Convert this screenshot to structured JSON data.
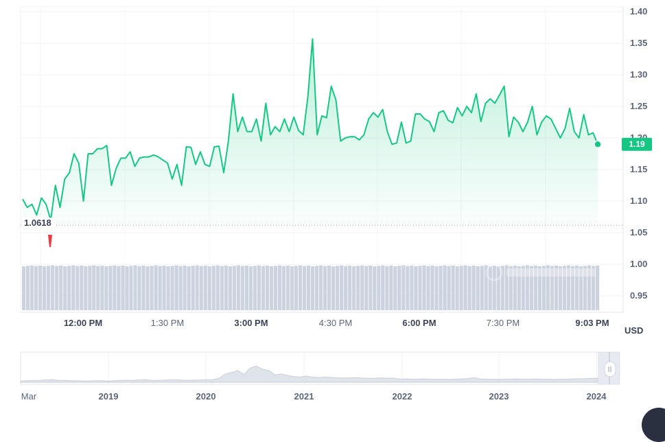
{
  "chart_data": {
    "type": "area",
    "currency": "USD",
    "ylim": [
      0.93,
      1.41
    ],
    "y_ticks": [
      "1.40",
      "1.35",
      "1.30",
      "1.25",
      "1.20",
      "1.15",
      "1.10",
      "1.05",
      "1.00",
      "0.95"
    ],
    "y_tick_values": [
      1.4,
      1.35,
      1.3,
      1.25,
      1.2,
      1.15,
      1.1,
      1.05,
      1.0,
      0.95
    ],
    "x_ticks": [
      {
        "label": "12:00 PM",
        "bold": true
      },
      {
        "label": "1:30 PM",
        "bold": false
      },
      {
        "label": "3:00 PM",
        "bold": true
      },
      {
        "label": "4:30 PM",
        "bold": false
      },
      {
        "label": "6:00 PM",
        "bold": true
      },
      {
        "label": "7:30 PM",
        "bold": false
      },
      {
        "label": "9:03 PM",
        "bold": true
      }
    ],
    "current_price": "1.19",
    "current_value": 1.19,
    "open_price": "1.0618",
    "open_value": 1.0618,
    "series_color": "#16c784",
    "down_color": "#ea3943",
    "values": [
      1.103,
      1.09,
      1.095,
      1.078,
      1.105,
      1.095,
      1.07,
      1.125,
      1.09,
      1.135,
      1.145,
      1.175,
      1.16,
      1.1,
      1.175,
      1.175,
      1.183,
      1.183,
      1.188,
      1.125,
      1.152,
      1.168,
      1.168,
      1.178,
      1.155,
      1.168,
      1.17,
      1.17,
      1.173,
      1.17,
      1.165,
      1.16,
      1.135,
      1.158,
      1.125,
      1.186,
      1.185,
      1.158,
      1.178,
      1.158,
      1.155,
      1.186,
      1.187,
      1.145,
      1.195,
      1.27,
      1.21,
      1.233,
      1.21,
      1.21,
      1.23,
      1.195,
      1.255,
      1.205,
      1.218,
      1.21,
      1.23,
      1.21,
      1.233,
      1.212,
      1.205,
      1.265,
      1.357,
      1.205,
      1.235,
      1.232,
      1.282,
      1.26,
      1.195,
      1.2,
      1.202,
      1.202,
      1.197,
      1.205,
      1.23,
      1.24,
      1.233,
      1.245,
      1.21,
      1.19,
      1.192,
      1.225,
      1.192,
      1.195,
      1.238,
      1.238,
      1.23,
      1.226,
      1.21,
      1.24,
      1.243,
      1.228,
      1.224,
      1.248,
      1.235,
      1.25,
      1.24,
      1.27,
      1.226,
      1.255,
      1.262,
      1.255,
      1.268,
      1.282,
      1.202,
      1.233,
      1.225,
      1.21,
      1.225,
      1.25,
      1.205,
      1.225,
      1.235,
      1.23,
      1.215,
      1.2,
      1.215,
      1.247,
      1.21,
      1.2,
      1.237,
      1.205,
      1.208,
      1.19
    ],
    "navigator": {
      "labels": [
        {
          "label": "Mar",
          "bold": false
        },
        {
          "label": "2019",
          "bold": true
        },
        {
          "label": "2020",
          "bold": true
        },
        {
          "label": "2021",
          "bold": true
        },
        {
          "label": "2022",
          "bold": true
        },
        {
          "label": "2023",
          "bold": true
        },
        {
          "label": "2024",
          "bold": true
        }
      ],
      "values": [
        0.05,
        0.06,
        0.07,
        0.07,
        0.09,
        0.1,
        0.08,
        0.07,
        0.06,
        0.06,
        0.05,
        0.05,
        0.06,
        0.06,
        0.05,
        0.06,
        0.07,
        0.08,
        0.07,
        0.09,
        0.1,
        0.08,
        0.07,
        0.08,
        0.09,
        0.1,
        0.08,
        0.08,
        0.08,
        0.09,
        0.1,
        0.1,
        0.16,
        0.32,
        0.38,
        0.45,
        0.3,
        0.55,
        0.62,
        0.5,
        0.45,
        0.28,
        0.32,
        0.26,
        0.22,
        0.2,
        0.24,
        0.2,
        0.18,
        0.2,
        0.19,
        0.17,
        0.16,
        0.17,
        0.18,
        0.16,
        0.15,
        0.15,
        0.17,
        0.15,
        0.16,
        0.12,
        0.13,
        0.12,
        0.12,
        0.13,
        0.12,
        0.11,
        0.12,
        0.11,
        0.12,
        0.13,
        0.14,
        0.18,
        0.13,
        0.12,
        0.12,
        0.11,
        0.12,
        0.12,
        0.13,
        0.12,
        0.12,
        0.13,
        0.12,
        0.12,
        0.11,
        0.12,
        0.12,
        0.13,
        0.14,
        0.14,
        0.15,
        0.15
      ]
    }
  }
}
